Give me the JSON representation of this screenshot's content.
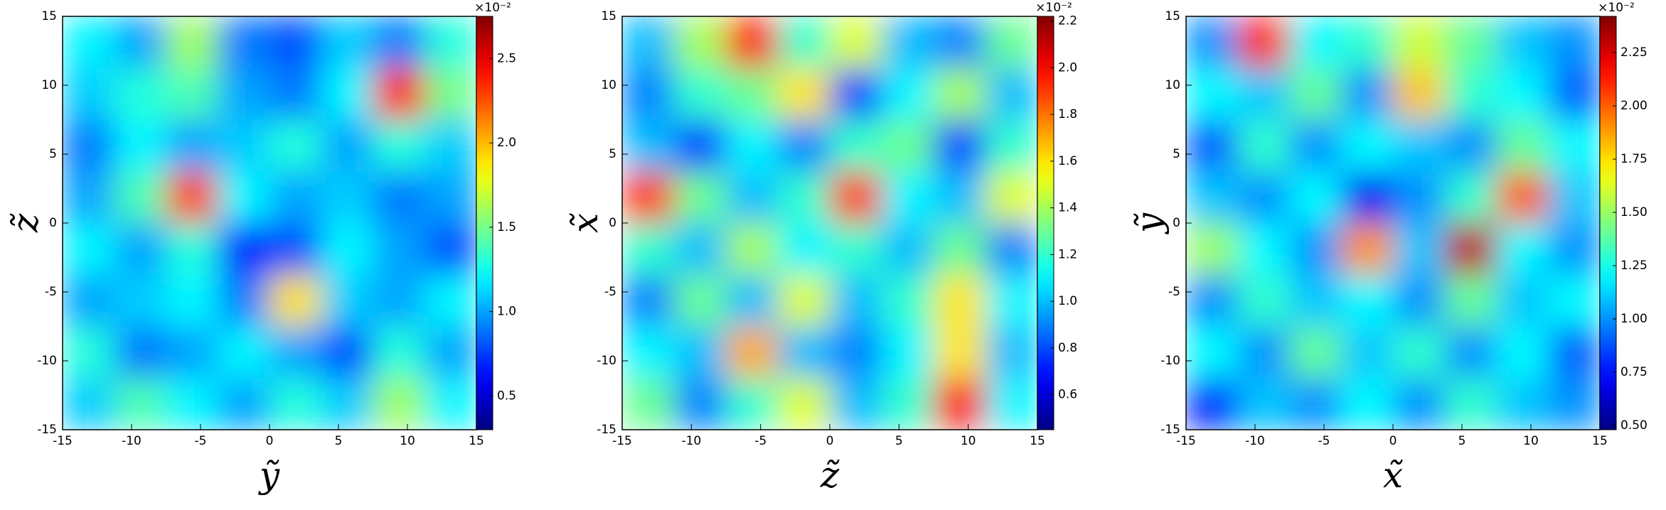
{
  "chart_data": [
    {
      "type": "heatmap",
      "colormap": "jet",
      "x_label": "ỹ",
      "y_label": "z̃",
      "xlim": [
        -15,
        15
      ],
      "ylim": [
        -15,
        15
      ],
      "xticks": [
        -15,
        -10,
        -5,
        0,
        5,
        10,
        15
      ],
      "yticks": [
        -15,
        -10,
        -5,
        0,
        5,
        10,
        15
      ],
      "clim": [
        0.3,
        2.75
      ],
      "cticks": [
        0.5,
        {
          "value": 1.0,
          "label": "1.0"
        },
        1.5,
        {
          "value": 2.0,
          "label": "2.0"
        },
        2.5
      ],
      "colorbar_scale": "×10⁻²",
      "z": [
        [
          1.2,
          1.0,
          1.6,
          0.9,
          0.8,
          1.1,
          0.9,
          1.3
        ],
        [
          1.1,
          1.3,
          1.4,
          1.0,
          0.9,
          1.2,
          2.4,
          1.5
        ],
        [
          0.9,
          1.2,
          1.0,
          1.1,
          1.3,
          1.0,
          1.3,
          1.1
        ],
        [
          1.0,
          1.4,
          2.3,
          1.2,
          1.0,
          1.1,
          0.9,
          1.0
        ],
        [
          1.2,
          1.0,
          1.3,
          0.7,
          0.8,
          1.2,
          1.0,
          0.8
        ],
        [
          1.0,
          1.1,
          1.2,
          0.9,
          1.9,
          1.1,
          1.0,
          1.2
        ],
        [
          1.3,
          0.9,
          1.0,
          1.2,
          1.0,
          0.8,
          1.3,
          1.0
        ],
        [
          1.1,
          1.4,
          1.2,
          1.0,
          1.3,
          1.1,
          1.6,
          1.2
        ]
      ]
    },
    {
      "type": "heatmap",
      "colormap": "jet",
      "x_label": "z̃",
      "y_label": "x̃",
      "xlim": [
        -15,
        15
      ],
      "ylim": [
        -15,
        15
      ],
      "xticks": [
        -15,
        -10,
        -5,
        0,
        5,
        10,
        15
      ],
      "yticks": [
        -15,
        -10,
        -5,
        0,
        5,
        10,
        15
      ],
      "clim": [
        0.45,
        2.22
      ],
      "cticks": [
        0.6,
        0.8,
        {
          "value": 1.0,
          "label": "1.0"
        },
        1.2,
        1.4,
        1.6,
        1.8,
        {
          "value": 2.0,
          "label": "2.0"
        },
        2.2
      ],
      "colorbar_scale": "×10⁻²",
      "z": [
        [
          1.0,
          1.4,
          2.0,
          1.2,
          1.5,
          1.0,
          0.9,
          1.3
        ],
        [
          0.9,
          1.2,
          1.3,
          1.6,
          0.8,
          1.1,
          1.4,
          1.0
        ],
        [
          1.0,
          0.8,
          1.1,
          0.9,
          1.2,
          1.3,
          0.8,
          1.2
        ],
        [
          1.9,
          1.3,
          1.0,
          1.2,
          1.9,
          1.1,
          1.0,
          1.5
        ],
        [
          1.2,
          1.0,
          1.4,
          1.1,
          1.2,
          1.0,
          1.3,
          0.9
        ],
        [
          0.9,
          1.3,
          1.0,
          1.5,
          1.0,
          1.2,
          1.6,
          1.1
        ],
        [
          1.1,
          1.0,
          1.7,
          1.0,
          0.9,
          1.1,
          1.6,
          1.0
        ],
        [
          1.3,
          0.9,
          1.2,
          1.5,
          1.0,
          1.2,
          2.0,
          1.1
        ]
      ]
    },
    {
      "type": "heatmap",
      "colormap": "jet",
      "x_label": "x̃",
      "y_label": "ỹ",
      "xlim": [
        -15,
        15
      ],
      "ylim": [
        -15,
        15
      ],
      "xticks": [
        -15,
        -10,
        -5,
        0,
        5,
        10,
        15
      ],
      "yticks": [
        -15,
        -10,
        -5,
        0,
        5,
        10,
        15
      ],
      "clim": [
        0.48,
        2.42
      ],
      "cticks": [
        {
          "value": 0.5,
          "label": "0.50"
        },
        0.75,
        {
          "value": 1.0,
          "label": "1.00"
        },
        1.25,
        {
          "value": 1.5,
          "label": "1.50"
        },
        1.75,
        {
          "value": 2.0,
          "label": "2.00"
        },
        2.25
      ],
      "colorbar_scale": "×10⁻²",
      "z": [
        [
          1.0,
          2.1,
          1.2,
          1.3,
          1.6,
          1.4,
          1.1,
          1.0
        ],
        [
          1.2,
          1.1,
          1.4,
          1.0,
          1.8,
          1.3,
          1.2,
          0.9
        ],
        [
          0.9,
          1.3,
          1.0,
          1.2,
          1.1,
          1.0,
          1.4,
          1.2
        ],
        [
          1.1,
          1.0,
          1.2,
          0.7,
          1.0,
          1.3,
          2.0,
          1.1
        ],
        [
          1.5,
          1.2,
          1.0,
          1.9,
          1.1,
          2.3,
          1.2,
          1.0
        ],
        [
          1.0,
          1.3,
          1.1,
          1.2,
          1.0,
          1.4,
          1.1,
          1.2
        ],
        [
          1.2,
          1.0,
          1.4,
          1.1,
          1.3,
          1.0,
          1.2,
          0.9
        ],
        [
          0.8,
          1.1,
          1.0,
          1.2,
          1.0,
          1.3,
          1.1,
          1.0
        ]
      ]
    }
  ]
}
